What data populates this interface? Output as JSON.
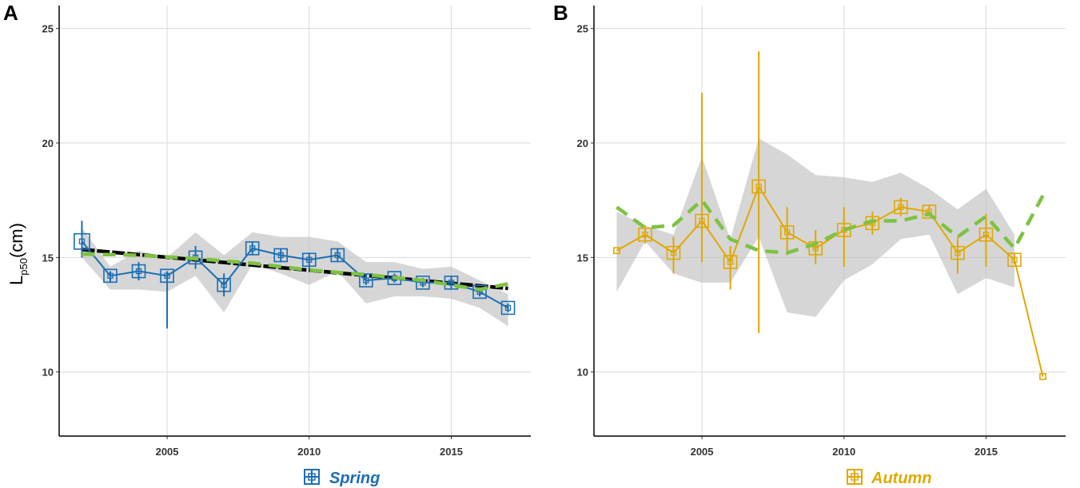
{
  "chart_data": [
    {
      "panel_letter": "A",
      "type": "line",
      "legend_label": "Spring",
      "color": "#1a6eb4",
      "x_ticks": [
        2005,
        2010,
        2015
      ],
      "y_ticks": [
        10,
        15,
        20,
        25
      ],
      "xlim": [
        2001.2,
        2017.8
      ],
      "ylim": [
        7.2,
        26
      ],
      "ylabel_main": "L",
      "ylabel_sub": "p50",
      "ylabel_units": "(cm)",
      "series": {
        "years": [
          2002,
          2003,
          2004,
          2005,
          2006,
          2007,
          2008,
          2009,
          2010,
          2011,
          2012,
          2013,
          2014,
          2015,
          2016,
          2017
        ],
        "values": [
          15.7,
          14.2,
          14.4,
          14.2,
          15.0,
          13.8,
          15.4,
          15.1,
          14.9,
          15.1,
          14.0,
          14.1,
          13.9,
          13.9,
          13.5,
          12.8
        ],
        "error_low": [
          15.0,
          13.9,
          14.0,
          11.9,
          14.5,
          13.3,
          15.1,
          14.8,
          14.5,
          14.8,
          13.8,
          13.9,
          13.7,
          13.6,
          13.3,
          12.6
        ],
        "error_high": [
          16.6,
          14.4,
          14.8,
          14.4,
          15.5,
          14.3,
          15.7,
          15.4,
          15.2,
          15.4,
          14.3,
          14.3,
          14.1,
          14.2,
          13.7,
          13.0
        ],
        "square_sizes": [
          1.2,
          1.0,
          1.0,
          1.0,
          1.0,
          1.0,
          1.0,
          1.0,
          1.0,
          1.0,
          1.0,
          1.0,
          1.0,
          1.0,
          1.0,
          1.0
        ]
      },
      "ribbon": {
        "lower": [
          15.0,
          13.6,
          13.6,
          13.5,
          14.2,
          12.6,
          14.7,
          14.3,
          13.8,
          14.4,
          13.0,
          13.3,
          13.3,
          13.2,
          12.8,
          12.0
        ],
        "upper": [
          16.3,
          14.6,
          15.3,
          15.0,
          16.1,
          15.1,
          16.1,
          15.9,
          15.9,
          15.7,
          14.8,
          14.8,
          14.5,
          14.6,
          14.0,
          13.4
        ]
      },
      "trend_line": {
        "x": [
          2002,
          2017
        ],
        "y": [
          15.35,
          13.65
        ],
        "color": "#000000"
      },
      "smooth_line": {
        "x": [
          2002,
          2004,
          2006,
          2008,
          2010,
          2012,
          2014,
          2016,
          2017
        ],
        "y": [
          15.15,
          15.1,
          14.95,
          14.75,
          14.45,
          14.25,
          14.0,
          13.6,
          13.85
        ],
        "color": "#7dc242"
      }
    },
    {
      "panel_letter": "B",
      "type": "line",
      "legend_label": "Autumn",
      "color": "#e0a800",
      "x_ticks": [
        2005,
        2010,
        2015
      ],
      "y_ticks": [
        10,
        15,
        20,
        25
      ],
      "xlim": [
        2001.2,
        2017.8
      ],
      "ylim": [
        7.2,
        26
      ],
      "series": {
        "years": [
          2002,
          2003,
          2004,
          2005,
          2006,
          2007,
          2008,
          2009,
          2010,
          2011,
          2012,
          2013,
          2014,
          2015,
          2016,
          2017
        ],
        "values": [
          15.3,
          16.0,
          15.2,
          16.6,
          14.8,
          18.1,
          16.1,
          15.4,
          16.2,
          16.5,
          17.2,
          17.0,
          15.2,
          16.0,
          14.9,
          9.8
        ],
        "error_low": [
          15.3,
          15.6,
          14.3,
          14.8,
          13.6,
          11.7,
          15.1,
          14.7,
          14.6,
          16.0,
          16.8,
          16.8,
          14.3,
          14.6,
          14.7,
          9.8
        ],
        "error_high": [
          15.3,
          16.4,
          15.9,
          22.2,
          15.5,
          24.0,
          17.2,
          16.2,
          17.2,
          17.0,
          17.6,
          17.3,
          15.9,
          16.9,
          15.2,
          9.8
        ],
        "square_sizes": [
          0.45,
          1.0,
          1.0,
          1.0,
          1.0,
          1.0,
          1.0,
          1.0,
          1.0,
          1.0,
          1.0,
          1.0,
          1.0,
          1.0,
          1.0,
          0.45
        ]
      },
      "ribbon": {
        "x": [
          2002,
          2003,
          2004,
          2005,
          2006,
          2007,
          2008,
          2009,
          2010,
          2011,
          2012,
          2013,
          2014,
          2015,
          2016
        ],
        "lower": [
          13.5,
          15.7,
          14.3,
          13.9,
          13.9,
          15.9,
          12.6,
          12.4,
          14.0,
          14.7,
          15.8,
          16.0,
          13.4,
          14.1,
          13.7
        ],
        "upper": [
          17.0,
          16.4,
          16.0,
          19.4,
          15.8,
          20.2,
          19.5,
          18.6,
          18.5,
          18.3,
          18.7,
          18.0,
          17.1,
          18.0,
          16.0
        ]
      },
      "smooth_line": {
        "x": [
          2002,
          2003,
          2004,
          2005,
          2006,
          2007,
          2008,
          2009,
          2010,
          2011,
          2012,
          2013,
          2014,
          2015,
          2016,
          2017
        ],
        "y": [
          17.2,
          16.3,
          16.4,
          17.5,
          15.8,
          15.3,
          15.2,
          15.6,
          16.2,
          16.6,
          16.6,
          16.9,
          15.9,
          16.8,
          15.4,
          17.7
        ],
        "color": "#7dc242"
      }
    }
  ]
}
